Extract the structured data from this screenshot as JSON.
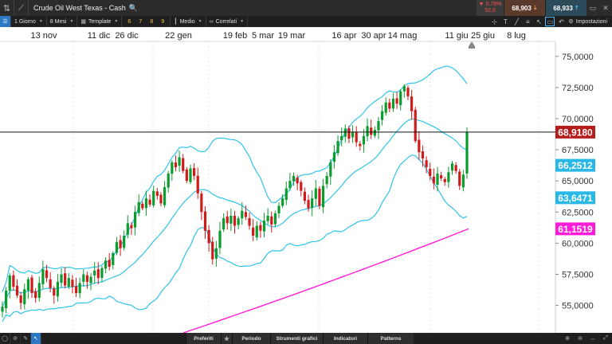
{
  "window": {
    "title": "Crude Oil West Texas - Cash",
    "change_pct": "0,78%",
    "change_points": "52,0",
    "bid": "68,903",
    "ask": "68,933"
  },
  "toolbar": {
    "timeframe": "1 Giorno",
    "range": "8 Mesi",
    "template": "Template",
    "quick_slots": [
      "6",
      "7",
      "8",
      "9"
    ],
    "style": "Medio",
    "related": "Correlati",
    "settings": "Impostazioni"
  },
  "bottom_tabs": {
    "favorites": "Preferiti",
    "period": "Periodo",
    "tools": "Strumenti grafici",
    "indicators": "Indicatori",
    "patterns": "Patterns"
  },
  "colors": {
    "up": "#0b9b2e",
    "down": "#d11a1a",
    "band": "#2fc3ea",
    "ma": "#ff1ad9",
    "last_price": "#b51c1c",
    "band_label": "#27b8e5"
  },
  "chart_data": {
    "type": "candlestick",
    "instrument": "Crude Oil West Texas - Cash",
    "x_tick_labels": [
      "13 nov",
      "11 dic",
      "26 dic",
      "22 gen",
      "19 feb",
      "5 mar",
      "19 mar",
      "16 apr",
      "30 apr",
      "14 mag",
      "11 giu",
      "25 giu",
      "8 lug"
    ],
    "y_tick_labels": [
      "75,0000",
      "72,5000",
      "70,0000",
      "67,5000",
      "65,0000",
      "62,5000",
      "60,0000",
      "57,5000",
      "55,0000"
    ],
    "y_ticks": [
      75,
      72.5,
      70,
      67.5,
      65,
      62.5,
      60,
      57.5,
      55
    ],
    "ylim": [
      52.8,
      76.2
    ],
    "last_price": 68.918,
    "last_price_label": "68,9180",
    "upper_band_value": 66.2512,
    "upper_band_label": "66,2512",
    "lower_band_value": 63.6471,
    "lower_band_label": "63,6471",
    "ma_value": 61.1519,
    "ma_label": "61,1519",
    "closes": [
      54.9,
      56.2,
      57.4,
      56.5,
      55.8,
      55.2,
      56.3,
      57.1,
      56.0,
      55.6,
      56.8,
      57.9,
      57.2,
      56.4,
      55.8,
      56.9,
      57.5,
      56.6,
      57.2,
      56.5,
      56.0,
      56.8,
      57.5,
      56.9,
      57.3,
      57.8,
      57.2,
      58.0,
      58.6,
      58.1,
      59.2,
      60.1,
      59.6,
      60.6,
      61.6,
      61.2,
      62.5,
      63.3,
      62.8,
      63.6,
      63.1,
      64.2,
      63.8,
      63.2,
      64.5,
      65.6,
      66.5,
      66.1,
      66.9,
      65.8,
      65.0,
      66.0,
      65.4,
      64.0,
      62.5,
      61.0,
      60.0,
      58.7,
      59.6,
      61.0,
      62.0,
      61.6,
      62.2,
      61.4,
      62.0,
      62.6,
      62.1,
      61.4,
      60.6,
      61.4,
      61.0,
      61.8,
      62.2,
      61.5,
      62.4,
      63.0,
      63.6,
      64.4,
      65.0,
      65.4,
      64.8,
      64.2,
      63.4,
      62.8,
      63.6,
      64.4,
      63.0,
      64.6,
      65.4,
      66.5,
      67.3,
      68.2,
      68.6,
      69.2,
      68.4,
      68.9,
      68.1,
      67.8,
      68.6,
      69.4,
      68.7,
      69.1,
      69.8,
      70.6,
      71.3,
      70.8,
      71.6,
      71.2,
      72.2,
      72.6,
      71.8,
      70.6,
      68.2,
      67.3,
      66.8,
      66.1,
      65.4,
      64.8,
      65.6,
      65.2,
      64.9,
      65.7,
      66.4,
      65.8,
      64.6,
      65.5,
      68.9
    ]
  }
}
